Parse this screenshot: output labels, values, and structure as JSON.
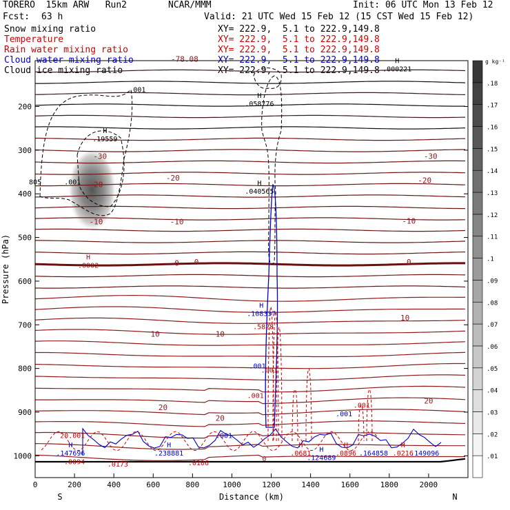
{
  "header": {
    "model": "TORERO  15km ARW   Run2",
    "org": "NCAR/MMM",
    "init": "Init: 06 UTC Mon 13 Feb 12",
    "fcst_label": "Fcst:",
    "fcst_value": "63 h",
    "valid": "Valid: 21 UTC Wed 15 Feb 12 (15 CST Wed 15 Feb 12)"
  },
  "fields": [
    {
      "name": "Snow mixing ratio",
      "xy": "XY= 222.9,  5.1 to 222.9,149.8",
      "color": "#000000"
    },
    {
      "name": "Temperature",
      "xy": "XY= 222.9,  5.1 to 222.9,149.8",
      "color": "#cc0000"
    },
    {
      "name": "Rain water mixing ratio",
      "xy": "XY= 222.9,  5.1 to 222.9,149.8",
      "color": "#cc0000"
    },
    {
      "name": "Cloud water mixing ratio",
      "xy": "XY= 222.9,  5.1 to 222.9,149.8",
      "color": "#0000cc"
    },
    {
      "name": "Cloud ice mixing ratio",
      "xy": "XY= 222.9,  5.1 to 222.9,149.8",
      "color": "#000000"
    }
  ],
  "chart_data": {
    "type": "cross-section",
    "xlabel": "Distance (km)",
    "ylabel": "Pressure (hPa)",
    "xlim": [
      0,
      2200
    ],
    "ylim": [
      1050,
      95
    ],
    "x_ticks": [
      0,
      200,
      400,
      600,
      800,
      1000,
      1200,
      1400,
      1600,
      1800,
      2000
    ],
    "y_ticks": [
      200,
      300,
      400,
      500,
      600,
      700,
      800,
      900,
      1000
    ],
    "left_end_label": "S",
    "right_end_label": "N",
    "colorbar": {
      "unit": "g kg⁻¹",
      "ticks": [
        ".01",
        ".02",
        ".03",
        ".04",
        ".05",
        ".06",
        ".07",
        ".08",
        ".09",
        ".1",
        ".11",
        ".12",
        ".13",
        ".14",
        ".15",
        ".16",
        ".17",
        ".18"
      ]
    },
    "temperature_labels": [
      {
        "x": 760,
        "p": 97,
        "text": "-78.08"
      },
      {
        "x": 330,
        "p": 320,
        "text": "-30"
      },
      {
        "x": 2010,
        "p": 320,
        "text": "-30"
      },
      {
        "x": 700,
        "p": 370,
        "text": "-20"
      },
      {
        "x": 1980,
        "p": 375,
        "text": "-20"
      },
      {
        "x": 310,
        "p": 385,
        "text": "-20"
      },
      {
        "x": 310,
        "p": 470,
        "text": "-10"
      },
      {
        "x": 720,
        "p": 470,
        "text": "-10"
      },
      {
        "x": 1900,
        "p": 468,
        "text": "-10"
      },
      {
        "x": 720,
        "p": 565,
        "text": "0"
      },
      {
        "x": 820,
        "p": 562,
        "text": "0"
      },
      {
        "x": 1900,
        "p": 562,
        "text": "0"
      },
      {
        "x": 610,
        "p": 727,
        "text": "10"
      },
      {
        "x": 940,
        "p": 727,
        "text": "10"
      },
      {
        "x": 1880,
        "p": 690,
        "text": "10"
      },
      {
        "x": 650,
        "p": 895,
        "text": "20"
      },
      {
        "x": 940,
        "p": 920,
        "text": "20"
      },
      {
        "x": 2000,
        "p": 880,
        "text": "20"
      }
    ],
    "temperature_extrema": [
      {
        "x": 270,
        "p": 560,
        "text": "H",
        "value": ".0002"
      },
      {
        "x": 1165,
        "p": 1003,
        "text": "",
        "value": "0"
      }
    ],
    "snow_maxima": [
      {
        "x": 355,
        "p": 270,
        "text": "H",
        "value": ".19559"
      },
      {
        "x": 1140,
        "p": 190,
        "text": "H",
        "value": ".058776"
      },
      {
        "x": 1140,
        "p": 390,
        "text": "H",
        "value": ".040565"
      },
      {
        "x": 1840,
        "p": 110,
        "text": "H",
        "value": ".000221"
      }
    ],
    "snow_contour_labels": [
      {
        "x": 520,
        "p": 167,
        "text": ".001"
      },
      {
        "x": 190,
        "p": 378,
        "text": ".001"
      },
      {
        "x": 0,
        "p": 378,
        "text": "805"
      }
    ],
    "rain_maxima": [
      {
        "x": 1160,
        "p": 700,
        "text": "",
        "value": ".5828"
      },
      {
        "x": 1120,
        "p": 858,
        "text": "",
        "value": ".001"
      },
      {
        "x": 1190,
        "p": 800,
        "text": "",
        "value": ".001"
      },
      {
        "x": 1660,
        "p": 880,
        "text": "",
        "value": ".001"
      },
      {
        "x": 190,
        "p": 950,
        "text": "",
        "value": "20.001"
      },
      {
        "x": 200,
        "p": 1010,
        "text": "",
        "value": ".0094"
      },
      {
        "x": 420,
        "p": 1015,
        "text": "",
        "value": ".0173"
      },
      {
        "x": 830,
        "p": 1012,
        "text": "",
        "value": ".0106"
      },
      {
        "x": 1350,
        "p": 990,
        "text": "H",
        "value": ".0681"
      },
      {
        "x": 1580,
        "p": 990,
        "text": "H",
        "value": ".0896"
      },
      {
        "x": 1870,
        "p": 990,
        "text": "H",
        "value": ".0216"
      }
    ],
    "cloud_water_maxima": [
      {
        "x": 180,
        "p": 990,
        "text": "H",
        "value": ".147696"
      },
      {
        "x": 680,
        "p": 990,
        "text": "H",
        "value": ".238881"
      },
      {
        "x": 1150,
        "p": 670,
        "text": "H",
        "value": ".108337"
      },
      {
        "x": 1455,
        "p": 1000,
        "text": "H",
        "value": ".124689"
      },
      {
        "x": 1720,
        "p": 990,
        "text": "",
        "value": ".164858"
      },
      {
        "x": 1980,
        "p": 990,
        "text": "",
        "value": ".149096"
      },
      {
        "x": 1570,
        "p": 900,
        "text": "",
        "value": ".001"
      },
      {
        "x": 1130,
        "p": 790,
        "text": "",
        "value": ".001"
      },
      {
        "x": 960,
        "p": 950,
        "text": "",
        "value": ".001"
      }
    ],
    "snow_shading": {
      "x_center": 290,
      "p_center": 400,
      "max": 0.19559
    }
  }
}
